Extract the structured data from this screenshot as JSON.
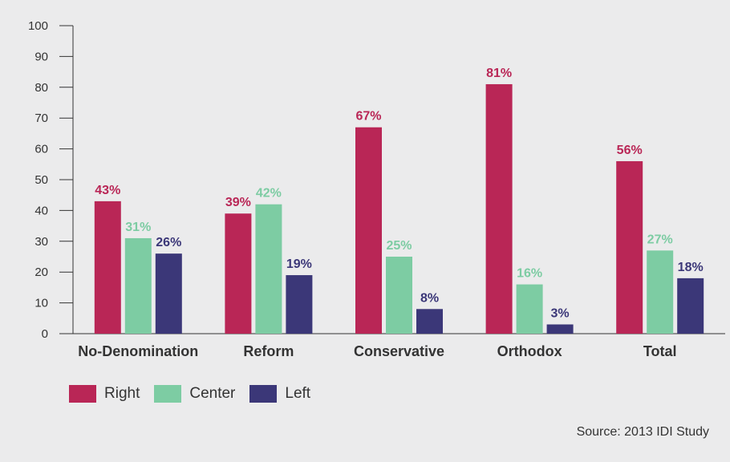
{
  "chart_data": {
    "type": "bar",
    "title": "",
    "xlabel": "",
    "ylabel": "",
    "categories": [
      "No-Denomination",
      "Reform",
      "Conservative",
      "Orthodox",
      "Total"
    ],
    "series": [
      {
        "name": "Right",
        "color": "#b92656",
        "values": [
          43,
          39,
          67,
          81,
          56
        ],
        "labels": [
          "43%",
          "39%",
          "67%",
          "81%",
          "56%"
        ]
      },
      {
        "name": "Center",
        "color": "#7dcca3",
        "values": [
          31,
          42,
          25,
          16,
          27
        ],
        "labels": [
          "31%",
          "42%",
          "25%",
          "16%",
          "27%"
        ]
      },
      {
        "name": "Left",
        "color": "#3b3778",
        "values": [
          26,
          19,
          8,
          3,
          18
        ],
        "labels": [
          "26%",
          "19%",
          "8%",
          "3%",
          "18%"
        ]
      }
    ],
    "ylim": [
      0,
      100
    ],
    "yticks": [
      0,
      10,
      20,
      30,
      40,
      50,
      60,
      70,
      80,
      90,
      100
    ],
    "grid": false,
    "legend_position": "bottom-left"
  },
  "legend": {
    "items": [
      {
        "label": "Right",
        "color": "#b92656"
      },
      {
        "label": "Center",
        "color": "#7dcca3"
      },
      {
        "label": "Left",
        "color": "#3b3778"
      }
    ]
  },
  "source": "Source: 2013 IDI Study"
}
